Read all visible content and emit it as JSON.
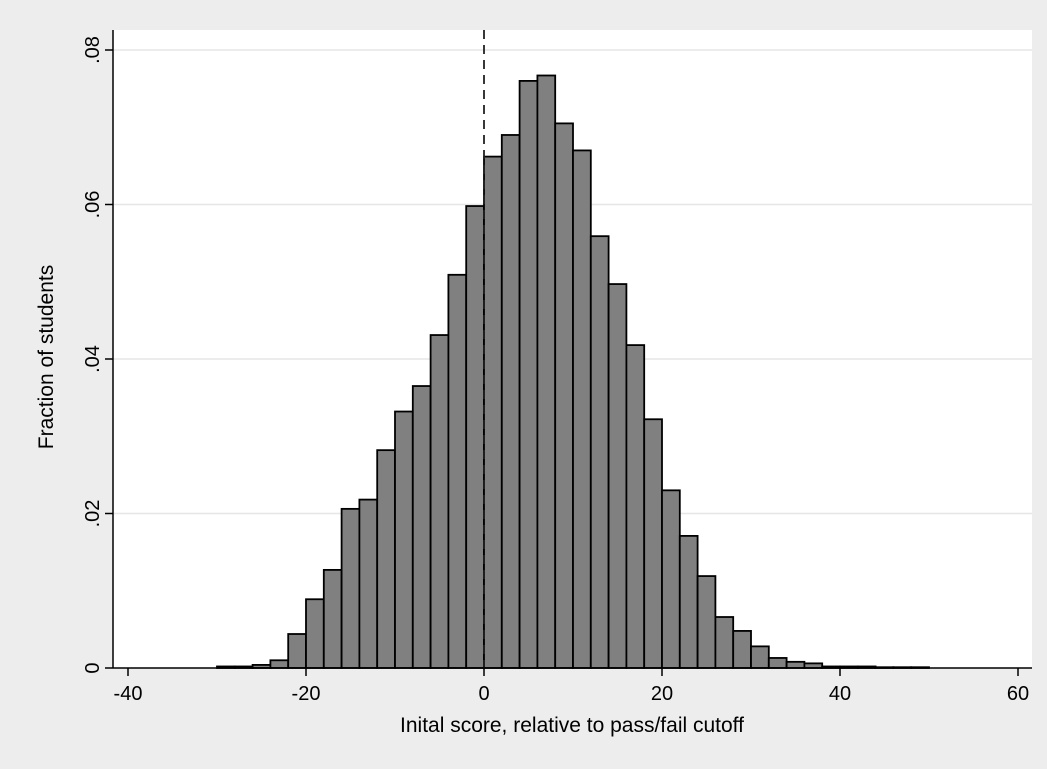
{
  "chart_data": {
    "type": "bar",
    "title": "",
    "xlabel": "Inital score, relative to pass/fail cutoff",
    "ylabel": "Fraction of students",
    "xlim": [
      -42,
      62
    ],
    "ylim": [
      0,
      0.08
    ],
    "x_ticks": [
      -40,
      -20,
      0,
      20,
      40,
      60
    ],
    "x_tick_labels": [
      "-40",
      "-20",
      "0",
      "20",
      "40",
      "60"
    ],
    "y_ticks": [
      0,
      0.02,
      0.04,
      0.06,
      0.08
    ],
    "y_tick_labels": [
      "0",
      ".02",
      ".04",
      ".06",
      ".08"
    ],
    "bin_width": 2,
    "bins": [
      {
        "start": -30,
        "value": 0.0002
      },
      {
        "start": -28,
        "value": 0.0002
      },
      {
        "start": -26,
        "value": 0.0004
      },
      {
        "start": -24,
        "value": 0.001
      },
      {
        "start": -22,
        "value": 0.0044
      },
      {
        "start": -20,
        "value": 0.0089
      },
      {
        "start": -18,
        "value": 0.0127
      },
      {
        "start": -16,
        "value": 0.0206
      },
      {
        "start": -14,
        "value": 0.0218
      },
      {
        "start": -12,
        "value": 0.0282
      },
      {
        "start": -10,
        "value": 0.0332
      },
      {
        "start": -8,
        "value": 0.0365
      },
      {
        "start": -6,
        "value": 0.0431
      },
      {
        "start": -4,
        "value": 0.0509
      },
      {
        "start": -2,
        "value": 0.0598
      },
      {
        "start": 0,
        "value": 0.0662
      },
      {
        "start": 2,
        "value": 0.069
      },
      {
        "start": 4,
        "value": 0.076
      },
      {
        "start": 6,
        "value": 0.0767
      },
      {
        "start": 8,
        "value": 0.0705
      },
      {
        "start": 10,
        "value": 0.067
      },
      {
        "start": 12,
        "value": 0.0559
      },
      {
        "start": 14,
        "value": 0.0497
      },
      {
        "start": 16,
        "value": 0.0418
      },
      {
        "start": 18,
        "value": 0.0322
      },
      {
        "start": 20,
        "value": 0.023
      },
      {
        "start": 22,
        "value": 0.0171
      },
      {
        "start": 24,
        "value": 0.0119
      },
      {
        "start": 26,
        "value": 0.0066
      },
      {
        "start": 28,
        "value": 0.0048
      },
      {
        "start": 30,
        "value": 0.0028
      },
      {
        "start": 32,
        "value": 0.0013
      },
      {
        "start": 34,
        "value": 0.0008
      },
      {
        "start": 36,
        "value": 0.0006
      },
      {
        "start": 38,
        "value": 0.0002
      },
      {
        "start": 40,
        "value": 0.0002
      },
      {
        "start": 42,
        "value": 0.0002
      },
      {
        "start": 44,
        "value": 0.0001
      },
      {
        "start": 46,
        "value": 0.0001
      },
      {
        "start": 48,
        "value": 0.0001
      }
    ],
    "reference_line": {
      "x": 0,
      "style": "dashed"
    },
    "grid": {
      "horizontal": true,
      "vertical": false
    },
    "legend": "none",
    "colors": {
      "bar_fill": "#808080",
      "bar_edge": "#000000",
      "plot_bg": "#ffffff",
      "outer_bg": "#ededed",
      "grid": "#e6e6e6"
    }
  }
}
